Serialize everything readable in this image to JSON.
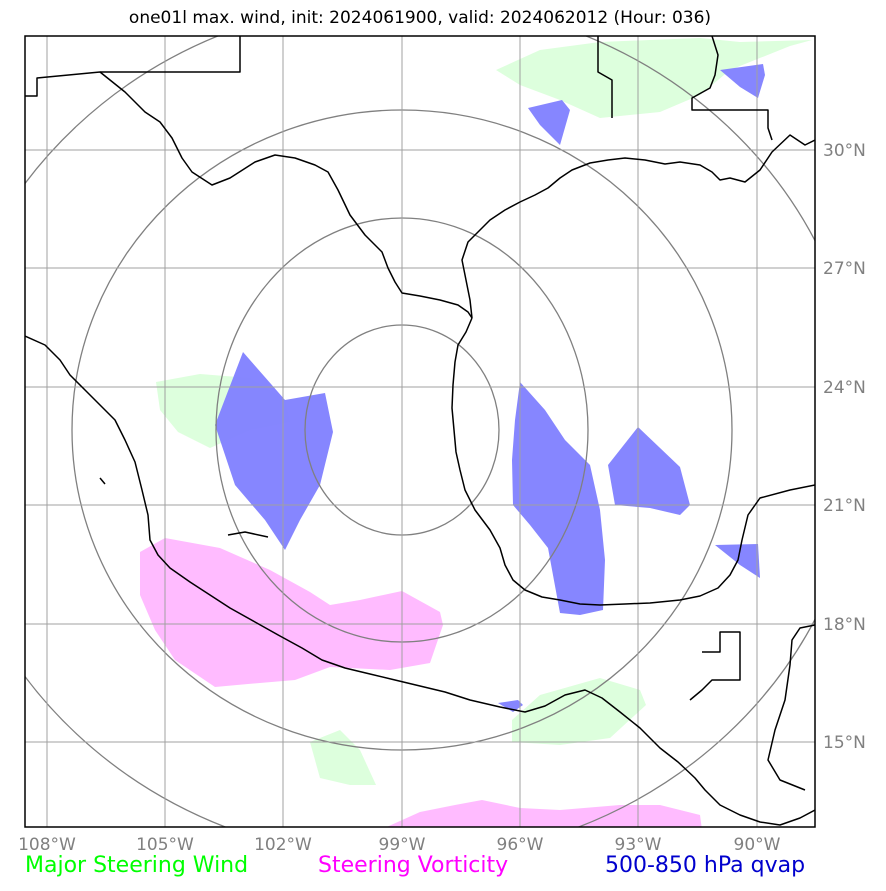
{
  "title": "one01l max. wind, init: 2024061900, valid: 2024062012 (Hour: 036)",
  "lon_ticks": [
    "108°W",
    "105°W",
    "102°W",
    "99°W",
    "96°W",
    "93°W",
    "90°W"
  ],
  "lat_ticks": [
    "30°N",
    "27°N",
    "24°N",
    "21°N",
    "18°N",
    "15°N"
  ],
  "legend": {
    "major_steering_wind": "Major Steering Wind",
    "steering_vorticity": "Steering Vorticity",
    "qvap": "500-850 hPa qvap"
  },
  "colors": {
    "major_steering_wind": "#00ff00",
    "steering_vorticity": "#ff00ff",
    "qvap": "#0000cd",
    "green_fill": "#ddffdd",
    "magenta_fill": "#ffbbff",
    "blue_fill": "#8080ff",
    "grid": "#a0a0a0",
    "range_rings": "#808080"
  }
}
